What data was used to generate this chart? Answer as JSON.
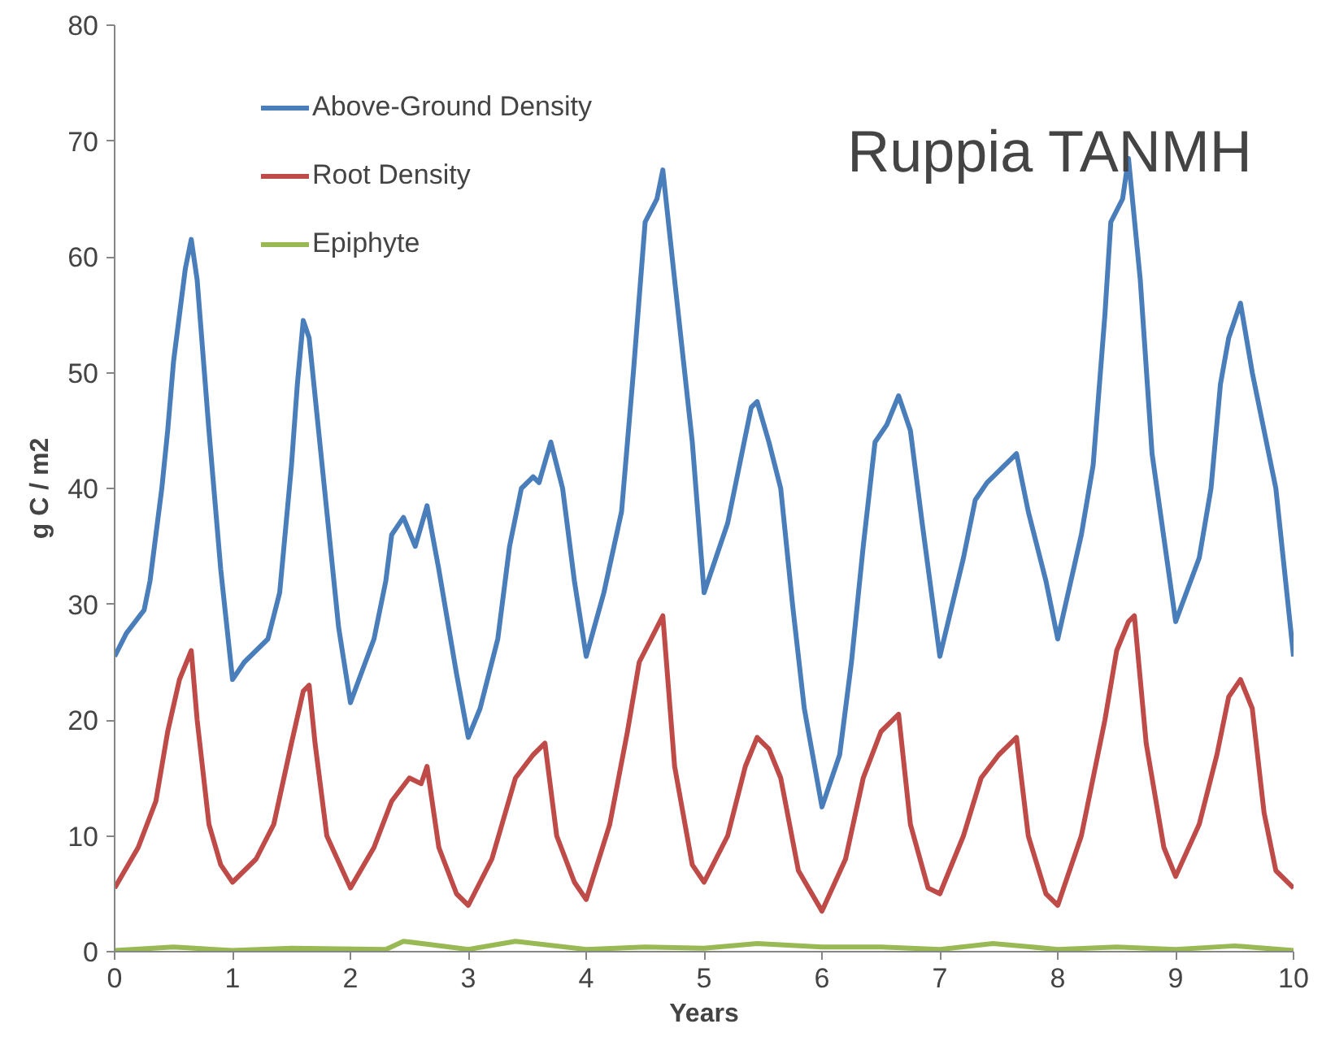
{
  "chart_data": {
    "type": "line",
    "xlabel": "Years",
    "ylabel": "g C / m2",
    "annotations": [
      "Ruppia TANMH"
    ],
    "xlim": [
      0,
      10
    ],
    "xticks": [
      0,
      1,
      2,
      3,
      4,
      5,
      6,
      7,
      8,
      9,
      10
    ],
    "ylim": [
      0,
      80
    ],
    "yticks": [
      0,
      10,
      20,
      30,
      40,
      50,
      60,
      70,
      80
    ],
    "grid": false,
    "legend": "top left",
    "marker": "none",
    "line_style": "solid",
    "series": [
      {
        "name": "Above-Ground Density",
        "color": "#4a7ebb",
        "x": [
          0,
          0.1,
          0.25,
          0.3,
          0.4,
          0.45,
          0.5,
          0.55,
          0.6,
          0.65,
          0.7,
          0.8,
          0.9,
          1.0,
          1.1,
          1.3,
          1.4,
          1.5,
          1.55,
          1.6,
          1.65,
          1.7,
          1.8,
          1.9,
          2.0,
          2.2,
          2.3,
          2.35,
          2.45,
          2.55,
          2.65,
          2.75,
          2.9,
          3.0,
          3.1,
          3.25,
          3.35,
          3.45,
          3.55,
          3.6,
          3.7,
          3.8,
          3.9,
          4.0,
          4.15,
          4.3,
          4.4,
          4.5,
          4.6,
          4.65,
          4.75,
          4.9,
          5.0,
          5.2,
          5.3,
          5.4,
          5.45,
          5.55,
          5.65,
          5.75,
          5.85,
          6.0,
          6.15,
          6.25,
          6.35,
          6.45,
          6.55,
          6.65,
          6.75,
          6.85,
          7.0,
          7.2,
          7.3,
          7.4,
          7.5,
          7.65,
          7.75,
          7.9,
          8.0,
          8.2,
          8.3,
          8.4,
          8.45,
          8.55,
          8.6,
          8.7,
          8.8,
          9.0,
          9.2,
          9.3,
          9.38,
          9.45,
          9.55,
          9.65,
          9.75,
          9.85,
          10.0
        ],
        "values": [
          25.5,
          27.5,
          29.5,
          32,
          40,
          45,
          51,
          55,
          59,
          61.5,
          58,
          45,
          33,
          23.5,
          25,
          27,
          31,
          42,
          49,
          54.5,
          53,
          48,
          38,
          28,
          21.5,
          27,
          32,
          36,
          37.5,
          35,
          38.5,
          33,
          24,
          18.5,
          21,
          27,
          35,
          40,
          41,
          40.5,
          44,
          40,
          32,
          25.5,
          31,
          38,
          50,
          63,
          65,
          67.5,
          58,
          44,
          31,
          37,
          42,
          47,
          47.5,
          44,
          40,
          30,
          21,
          12.5,
          17,
          25,
          35,
          44,
          45.5,
          48,
          45,
          37,
          25.5,
          34,
          39,
          40.5,
          41.5,
          43,
          38,
          32,
          27,
          36,
          42,
          55,
          63,
          65,
          68.5,
          58,
          43,
          28.5,
          34,
          40,
          49,
          53,
          56,
          50,
          45,
          40,
          25.5
        ]
      },
      {
        "name": "Root Density",
        "color": "#be4b48",
        "x": [
          0,
          0.2,
          0.35,
          0.45,
          0.55,
          0.65,
          0.7,
          0.8,
          0.9,
          1.0,
          1.2,
          1.35,
          1.5,
          1.6,
          1.65,
          1.7,
          1.8,
          2.0,
          2.2,
          2.35,
          2.5,
          2.6,
          2.65,
          2.75,
          2.9,
          3.0,
          3.2,
          3.4,
          3.55,
          3.65,
          3.75,
          3.9,
          4.0,
          4.2,
          4.35,
          4.45,
          4.55,
          4.65,
          4.75,
          4.9,
          5.0,
          5.2,
          5.35,
          5.45,
          5.55,
          5.65,
          5.8,
          6.0,
          6.2,
          6.35,
          6.5,
          6.65,
          6.75,
          6.9,
          7.0,
          7.2,
          7.35,
          7.5,
          7.65,
          7.75,
          7.9,
          8.0,
          8.2,
          8.4,
          8.5,
          8.6,
          8.65,
          8.75,
          8.9,
          9.0,
          9.2,
          9.35,
          9.45,
          9.55,
          9.65,
          9.75,
          9.85,
          10
        ],
        "values": [
          5.5,
          9,
          13,
          19,
          23.5,
          26,
          20,
          11,
          7.5,
          6,
          8,
          11,
          18,
          22.5,
          23,
          18,
          10,
          5.5,
          9,
          13,
          15,
          14.5,
          16,
          9,
          5,
          4,
          8,
          15,
          17,
          18,
          10,
          6,
          4.5,
          11,
          19,
          25,
          27,
          29,
          16,
          7.5,
          6,
          10,
          16,
          18.5,
          17.5,
          15,
          7,
          3.5,
          8,
          15,
          19,
          20.5,
          11,
          5.5,
          5,
          10,
          15,
          17,
          18.5,
          10,
          5,
          4,
          10,
          20,
          26,
          28.5,
          29,
          18,
          9,
          6.5,
          11,
          17,
          22,
          23.5,
          21,
          12,
          7,
          5.5
        ]
      },
      {
        "name": "Epiphyte",
        "color": "#98b954",
        "x": [
          0,
          0.5,
          1,
          1.5,
          2.3,
          2.45,
          3.0,
          3.4,
          4.0,
          4.5,
          5,
          5.45,
          6,
          6.5,
          7,
          7.45,
          8,
          8.5,
          9,
          9.5,
          10
        ],
        "values": [
          0.1,
          0.4,
          0.1,
          0.3,
          0.2,
          0.9,
          0.2,
          0.9,
          0.2,
          0.4,
          0.3,
          0.7,
          0.4,
          0.4,
          0.2,
          0.7,
          0.2,
          0.4,
          0.2,
          0.5,
          0.1
        ]
      }
    ]
  }
}
